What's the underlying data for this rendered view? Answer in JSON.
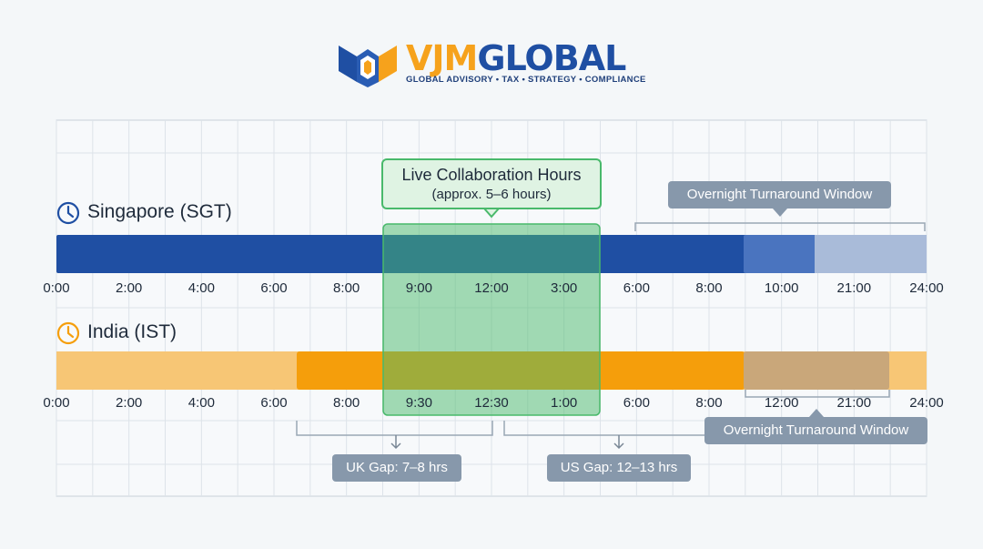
{
  "brand": {
    "name_part1": "VJM",
    "name_part2": "GLOBAL",
    "tagline": "GLOBAL ADVISORY • TAX • STRATEGY • COMPLIANCE"
  },
  "colors": {
    "sgt_bar": "#1f4fa3",
    "ist_bar": "#f59e0b",
    "overlap": "#49b96b",
    "callout": "#8798ab"
  },
  "live_window": {
    "title": "Live Collaboration Hours",
    "subtitle": "(approx. 5–6 hours)"
  },
  "singapore": {
    "label": "Singapore (SGT)",
    "icon": "clock-icon",
    "ticks": [
      "0:00",
      "2:00",
      "4:00",
      "6:00",
      "8:00",
      "9:00",
      "12:00",
      "3:00",
      "6:00",
      "8:00",
      "10:00",
      "21:00",
      "24:00"
    ],
    "overnight_label": "Overnight Turnaround Window"
  },
  "india": {
    "label": "India (IST)",
    "icon": "clock-icon",
    "ticks": [
      "0:00",
      "2:00",
      "4:00",
      "6:00",
      "8:00",
      "9:30",
      "12:30",
      "1:00",
      "6:00",
      "8:00",
      "12:00",
      "21:00",
      "24:00"
    ],
    "overnight_label": "Overnight Turnaround Window"
  },
  "gaps": {
    "uk": "UK Gap: 7–8 hrs",
    "us": "US Gap: 12–13 hrs"
  }
}
